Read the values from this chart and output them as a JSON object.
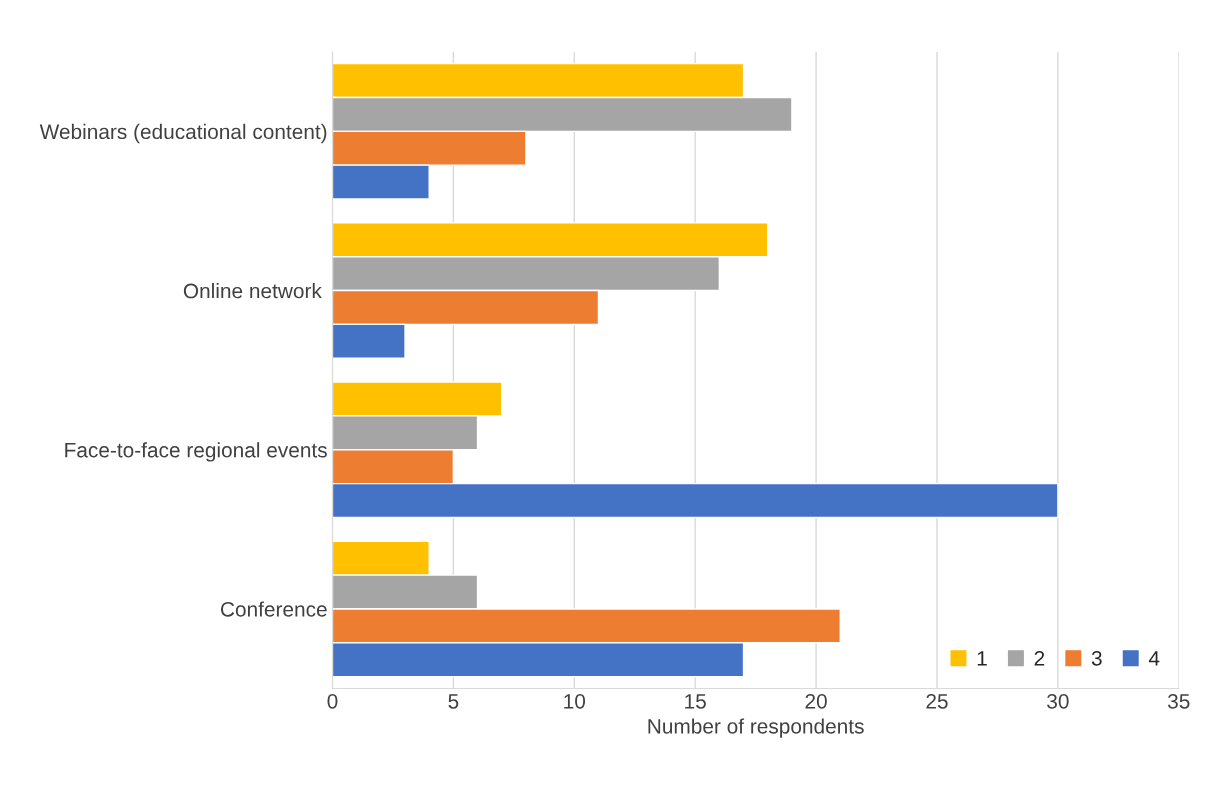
{
  "chart_data": {
    "type": "bar",
    "orientation": "horizontal",
    "xlabel": "Number of respondents",
    "categories": [
      "Webinars (educational content)",
      "Online network ",
      "Face-to-face regional events",
      "Conference"
    ],
    "series": [
      {
        "name": "1",
        "color": "#ffc000",
        "values": [
          17,
          18,
          7,
          4
        ]
      },
      {
        "name": "2",
        "color": "#a5a5a5",
        "values": [
          19,
          16,
          6,
          6
        ]
      },
      {
        "name": "3",
        "color": "#ed7d31",
        "values": [
          8,
          11,
          5,
          21
        ]
      },
      {
        "name": "4",
        "color": "#4472c4",
        "values": [
          4,
          3,
          30,
          17
        ]
      }
    ],
    "xlim": [
      0,
      35
    ],
    "xticks": [
      0,
      5,
      10,
      15,
      20,
      25,
      30,
      35
    ],
    "grid": "x",
    "legend": "bottom right"
  }
}
